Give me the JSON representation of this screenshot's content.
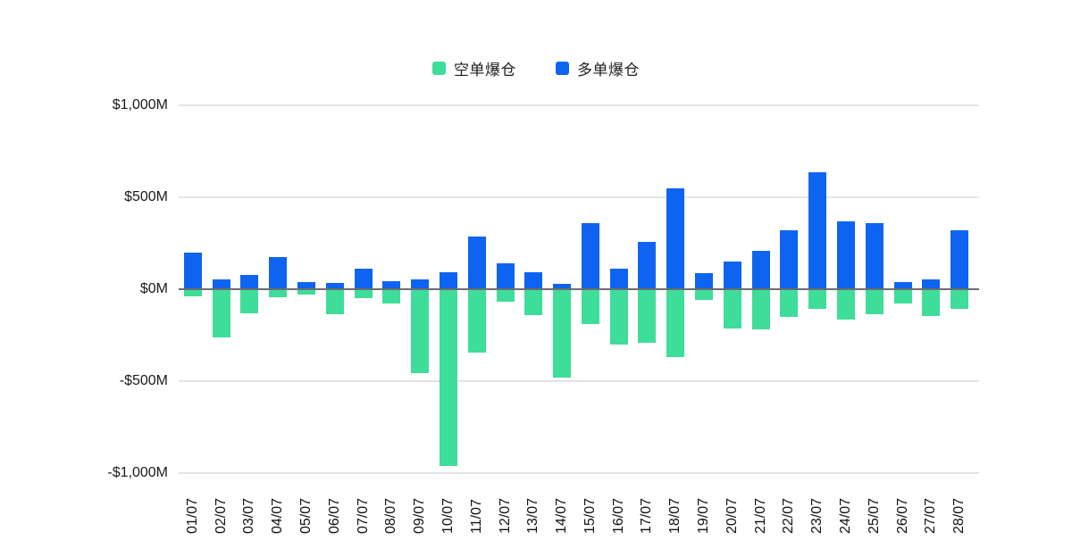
{
  "legend": {
    "short_label": "空单爆仓",
    "long_label": "多单爆仓"
  },
  "colors": {
    "short_green": "#3edd99",
    "long_blue": "#0e64f0",
    "gridline": "#e4e4e4",
    "zero_line": "#6d6d6d",
    "text": "#1b1b1b",
    "background": "#ffffff"
  },
  "chart_data": {
    "type": "bar",
    "title": "",
    "xlabel": "",
    "ylabel": "",
    "categories": [
      "01/07",
      "02/07",
      "03/07",
      "04/07",
      "05/07",
      "06/07",
      "07/07",
      "08/07",
      "09/07",
      "10/07",
      "11/07",
      "12/07",
      "13/07",
      "14/07",
      "15/07",
      "16/07",
      "17/07",
      "18/07",
      "19/07",
      "20/07",
      "21/07",
      "22/07",
      "23/07",
      "24/07",
      "25/07",
      "26/07",
      "27/07",
      "28/07"
    ],
    "series": [
      {
        "name": "空单爆仓",
        "color": "#3edd99",
        "values": [
          -40,
          -260,
          -130,
          -45,
          -30,
          -135,
          -50,
          -80,
          -455,
          -960,
          -345,
          -70,
          -140,
          -480,
          -190,
          -300,
          -290,
          -370,
          -60,
          -215,
          -220,
          -150,
          -105,
          -165,
          -135,
          -80,
          -145,
          -105
        ]
      },
      {
        "name": "多单爆仓",
        "color": "#0e64f0",
        "values": [
          200,
          55,
          80,
          175,
          40,
          35,
          110,
          45,
          55,
          90,
          285,
          140,
          90,
          30,
          360,
          110,
          255,
          550,
          85,
          150,
          210,
          320,
          635,
          370,
          360,
          40,
          55,
          320
        ]
      }
    ],
    "units": "$M",
    "ylim": [
      -1000,
      1000
    ],
    "y_ticks": [
      {
        "label": "$1,000M",
        "value": 1000
      },
      {
        "label": "$500M",
        "value": 500
      },
      {
        "label": "$0M",
        "value": 0
      },
      {
        "label": "-$500M",
        "value": -500
      },
      {
        "label": "-$1,000M",
        "value": -1000
      }
    ],
    "grid": true,
    "legend_position": "top-center"
  }
}
